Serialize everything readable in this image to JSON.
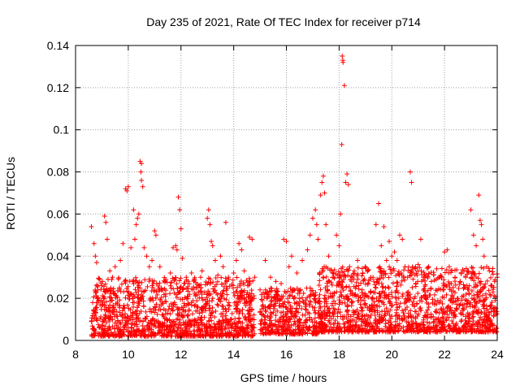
{
  "chart_data": {
    "type": "scatter",
    "title": "Day 235 of 2021, Rate Of TEC Index for receiver p714",
    "xlabel": "GPS time / hours",
    "ylabel": "ROTI / TECUs",
    "xlim": [
      8,
      24
    ],
    "ylim": [
      0,
      0.14
    ],
    "x_ticks": [
      "8",
      "10",
      "12",
      "14",
      "16",
      "18",
      "20",
      "22",
      "24"
    ],
    "y_ticks": [
      "0",
      "0.02",
      "0.04",
      "0.06",
      "0.08",
      "0.1",
      "0.12",
      "0.14"
    ],
    "grid": true,
    "marker": "plus",
    "color": "#ff0000",
    "series": [
      {
        "name": "ROTI",
        "points": [
          [
            8.6,
            0.054
          ],
          [
            8.7,
            0.046
          ],
          [
            8.75,
            0.04
          ],
          [
            8.8,
            0.037
          ],
          [
            8.9,
            0.029
          ],
          [
            9.0,
            0.026
          ],
          [
            9.1,
            0.059
          ],
          [
            9.15,
            0.056
          ],
          [
            9.2,
            0.048
          ],
          [
            9.3,
            0.033
          ],
          [
            9.4,
            0.03
          ],
          [
            9.5,
            0.035
          ],
          [
            9.7,
            0.038
          ],
          [
            9.8,
            0.046
          ],
          [
            9.9,
            0.072
          ],
          [
            9.95,
            0.071
          ],
          [
            10.0,
            0.073
          ],
          [
            10.1,
            0.044
          ],
          [
            10.2,
            0.062
          ],
          [
            10.25,
            0.048
          ],
          [
            10.3,
            0.055
          ],
          [
            10.35,
            0.058
          ],
          [
            10.4,
            0.06
          ],
          [
            10.45,
            0.085
          ],
          [
            10.5,
            0.084
          ],
          [
            10.48,
            0.08
          ],
          [
            10.5,
            0.076
          ],
          [
            10.55,
            0.073
          ],
          [
            10.6,
            0.044
          ],
          [
            10.7,
            0.04
          ],
          [
            10.8,
            0.035
          ],
          [
            10.9,
            0.038
          ],
          [
            11.0,
            0.052
          ],
          [
            11.05,
            0.05
          ],
          [
            11.2,
            0.035
          ],
          [
            11.4,
            0.028
          ],
          [
            11.6,
            0.032
          ],
          [
            11.7,
            0.044
          ],
          [
            11.8,
            0.045
          ],
          [
            11.85,
            0.043
          ],
          [
            11.9,
            0.068
          ],
          [
            11.95,
            0.062
          ],
          [
            12.0,
            0.053
          ],
          [
            12.05,
            0.039
          ],
          [
            12.2,
            0.03
          ],
          [
            12.4,
            0.032
          ],
          [
            12.6,
            0.025
          ],
          [
            12.8,
            0.033
          ],
          [
            13.0,
            0.058
          ],
          [
            13.05,
            0.062
          ],
          [
            13.1,
            0.055
          ],
          [
            13.15,
            0.047
          ],
          [
            13.2,
            0.045
          ],
          [
            13.3,
            0.038
          ],
          [
            13.4,
            0.031
          ],
          [
            13.5,
            0.04
          ],
          [
            13.6,
            0.035
          ],
          [
            13.7,
            0.056
          ],
          [
            13.8,
            0.03
          ],
          [
            14.0,
            0.032
          ],
          [
            14.1,
            0.038
          ],
          [
            14.2,
            0.046
          ],
          [
            14.3,
            0.043
          ],
          [
            14.4,
            0.033
          ],
          [
            14.6,
            0.049
          ],
          [
            14.7,
            0.048
          ],
          [
            14.8,
            0.03
          ],
          [
            15.0,
            0.024
          ],
          [
            15.2,
            0.038
          ],
          [
            15.4,
            0.03
          ],
          [
            15.6,
            0.028
          ],
          [
            15.8,
            0.027
          ],
          [
            15.9,
            0.048
          ],
          [
            16.0,
            0.047
          ],
          [
            16.1,
            0.035
          ],
          [
            16.2,
            0.04
          ],
          [
            16.4,
            0.032
          ],
          [
            16.6,
            0.038
          ],
          [
            16.8,
            0.043
          ],
          [
            16.9,
            0.05
          ],
          [
            17.0,
            0.058
          ],
          [
            17.1,
            0.062
          ],
          [
            17.15,
            0.055
          ],
          [
            17.2,
            0.048
          ],
          [
            17.3,
            0.069
          ],
          [
            17.35,
            0.075
          ],
          [
            17.4,
            0.078
          ],
          [
            17.45,
            0.07
          ],
          [
            17.5,
            0.055
          ],
          [
            17.6,
            0.04
          ],
          [
            17.8,
            0.03
          ],
          [
            17.9,
            0.05
          ],
          [
            18.0,
            0.045
          ],
          [
            18.05,
            0.06
          ],
          [
            18.1,
            0.093
          ],
          [
            18.15,
            0.132
          ],
          [
            18.2,
            0.121
          ],
          [
            18.12,
            0.135
          ],
          [
            18.14,
            0.133
          ],
          [
            18.25,
            0.075
          ],
          [
            18.3,
            0.079
          ],
          [
            18.35,
            0.074
          ],
          [
            18.4,
            0.035
          ],
          [
            18.5,
            0.03
          ],
          [
            18.7,
            0.038
          ],
          [
            18.9,
            0.032
          ],
          [
            19.0,
            0.035
          ],
          [
            19.2,
            0.03
          ],
          [
            19.4,
            0.055
          ],
          [
            19.5,
            0.065
          ],
          [
            19.6,
            0.045
          ],
          [
            19.7,
            0.054
          ],
          [
            19.8,
            0.038
          ],
          [
            19.9,
            0.047
          ],
          [
            20.0,
            0.04
          ],
          [
            20.1,
            0.042
          ],
          [
            20.2,
            0.038
          ],
          [
            20.3,
            0.05
          ],
          [
            20.4,
            0.048
          ],
          [
            20.5,
            0.035
          ],
          [
            20.6,
            0.03
          ],
          [
            20.7,
            0.08
          ],
          [
            20.75,
            0.075
          ],
          [
            20.8,
            0.032
          ],
          [
            21.0,
            0.036
          ],
          [
            21.1,
            0.048
          ],
          [
            21.2,
            0.03
          ],
          [
            21.4,
            0.035
          ],
          [
            21.5,
            0.028
          ],
          [
            21.7,
            0.034
          ],
          [
            21.8,
            0.03
          ],
          [
            22.0,
            0.042
          ],
          [
            22.1,
            0.043
          ],
          [
            22.2,
            0.025
          ],
          [
            22.4,
            0.03
          ],
          [
            22.6,
            0.028
          ],
          [
            22.8,
            0.03
          ],
          [
            23.0,
            0.062
          ],
          [
            23.1,
            0.05
          ],
          [
            23.2,
            0.045
          ],
          [
            23.3,
            0.069
          ],
          [
            23.35,
            0.057
          ],
          [
            23.4,
            0.055
          ],
          [
            23.45,
            0.048
          ],
          [
            23.5,
            0.04
          ],
          [
            23.6,
            0.035
          ],
          [
            23.7,
            0.033
          ],
          [
            23.8,
            0.026
          ],
          [
            23.9,
            0.028
          ],
          [
            24.0,
            0.03
          ]
        ]
      }
    ],
    "dense_band": [
      {
        "x": [
          8.6,
          14.8
        ],
        "ylow": 0.002,
        "yhigh": 0.03,
        "n": 1300
      },
      {
        "x": [
          15.0,
          17.2
        ],
        "ylow": 0.003,
        "yhigh": 0.025,
        "n": 420
      },
      {
        "x": [
          17.2,
          24.0
        ],
        "ylow": 0.004,
        "yhigh": 0.035,
        "n": 1400
      }
    ]
  }
}
